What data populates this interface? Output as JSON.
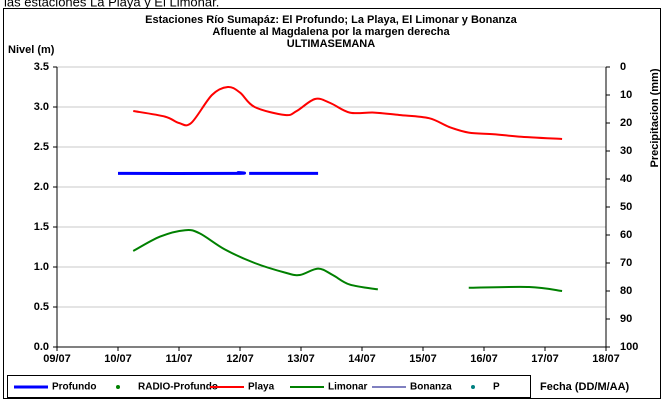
{
  "caption": "las estaciones La Playa y El Limonar.",
  "chart_data": {
    "type": "line",
    "title": "Estaciones Río Sumapáz: El Profundo; La Playa, El Limonar y Bonanza",
    "subtitle": "Afluente al Magdalena por la margen derecha",
    "period": "ULTIMASEMANA",
    "y_label": "Nivel (m)",
    "y2_label": "Precipitacion (mm)",
    "x_label": "Fecha (DD/M/AA)",
    "xlim": [
      9,
      18
    ],
    "xticks": [
      {
        "value": 9,
        "label": "09/07"
      },
      {
        "value": 10,
        "label": "10/07"
      },
      {
        "value": 11,
        "label": "11/07"
      },
      {
        "value": 12,
        "label": "12/07"
      },
      {
        "value": 13,
        "label": "13/07"
      },
      {
        "value": 14,
        "label": "14/07"
      },
      {
        "value": 15,
        "label": "15/07"
      },
      {
        "value": 16,
        "label": "16/07"
      },
      {
        "value": 17,
        "label": "17/07"
      },
      {
        "value": 18,
        "label": "18/07"
      }
    ],
    "ylim": [
      0,
      3.5
    ],
    "yticks": [
      {
        "value": 0,
        "label": "0.0"
      },
      0.5,
      {
        "value": 1,
        "label": "1.0"
      },
      1.5,
      {
        "value": 2,
        "label": "2.0"
      },
      2.5,
      {
        "value": 3,
        "label": "3.0"
      },
      3.5
    ],
    "y2lim": [
      100,
      0
    ],
    "y2ticks": [
      0,
      10,
      20,
      30,
      40,
      50,
      60,
      70,
      80,
      90,
      100
    ],
    "grid": true,
    "legend": "bottom",
    "series": [
      {
        "name": "Profundo",
        "color": "#0000ff",
        "width": 3,
        "marker": false,
        "x": [
          10.0,
          11.92,
          11.97,
          12.05,
          null,
          12.15,
          13.28
        ],
        "values": [
          2.17,
          2.17,
          2.18,
          2.17,
          null,
          2.17,
          2.17
        ]
      },
      {
        "name": "RADIO-Profundo",
        "color": "#008000",
        "width": 1,
        "marker": true,
        "x": [],
        "values": []
      },
      {
        "name": "Playa",
        "color": "#ff0000",
        "width": 2,
        "marker": false,
        "x": [
          10.25,
          10.77,
          11.0,
          11.2,
          11.54,
          11.8,
          12.0,
          12.24,
          12.74,
          12.93,
          13.23,
          13.48,
          13.8,
          14.2,
          14.61,
          15.1,
          15.43,
          15.75,
          16.16,
          16.57,
          17.28
        ],
        "values": [
          2.95,
          2.88,
          2.8,
          2.8,
          3.15,
          3.25,
          3.18,
          3.0,
          2.9,
          2.95,
          3.1,
          3.05,
          2.93,
          2.93,
          2.9,
          2.86,
          2.75,
          2.68,
          2.66,
          2.63,
          2.6
        ]
      },
      {
        "name": "Limonar",
        "color": "#008000",
        "width": 2,
        "marker": false,
        "x": [
          10.25,
          10.69,
          11.1,
          11.34,
          11.75,
          12.24,
          12.74,
          12.98,
          13.28,
          13.52,
          13.8,
          14.26,
          null,
          15.75,
          16.74,
          17.28
        ],
        "values": [
          1.2,
          1.38,
          1.46,
          1.42,
          1.22,
          1.05,
          0.93,
          0.9,
          0.98,
          0.9,
          0.78,
          0.72,
          null,
          0.74,
          0.75,
          0.7
        ]
      },
      {
        "name": "Bonanza",
        "color": "#000080",
        "width": 1,
        "marker": false,
        "x": [],
        "values": []
      },
      {
        "name": "P",
        "color": "#008080",
        "width": 1,
        "marker": true,
        "x": [],
        "values": []
      }
    ]
  }
}
